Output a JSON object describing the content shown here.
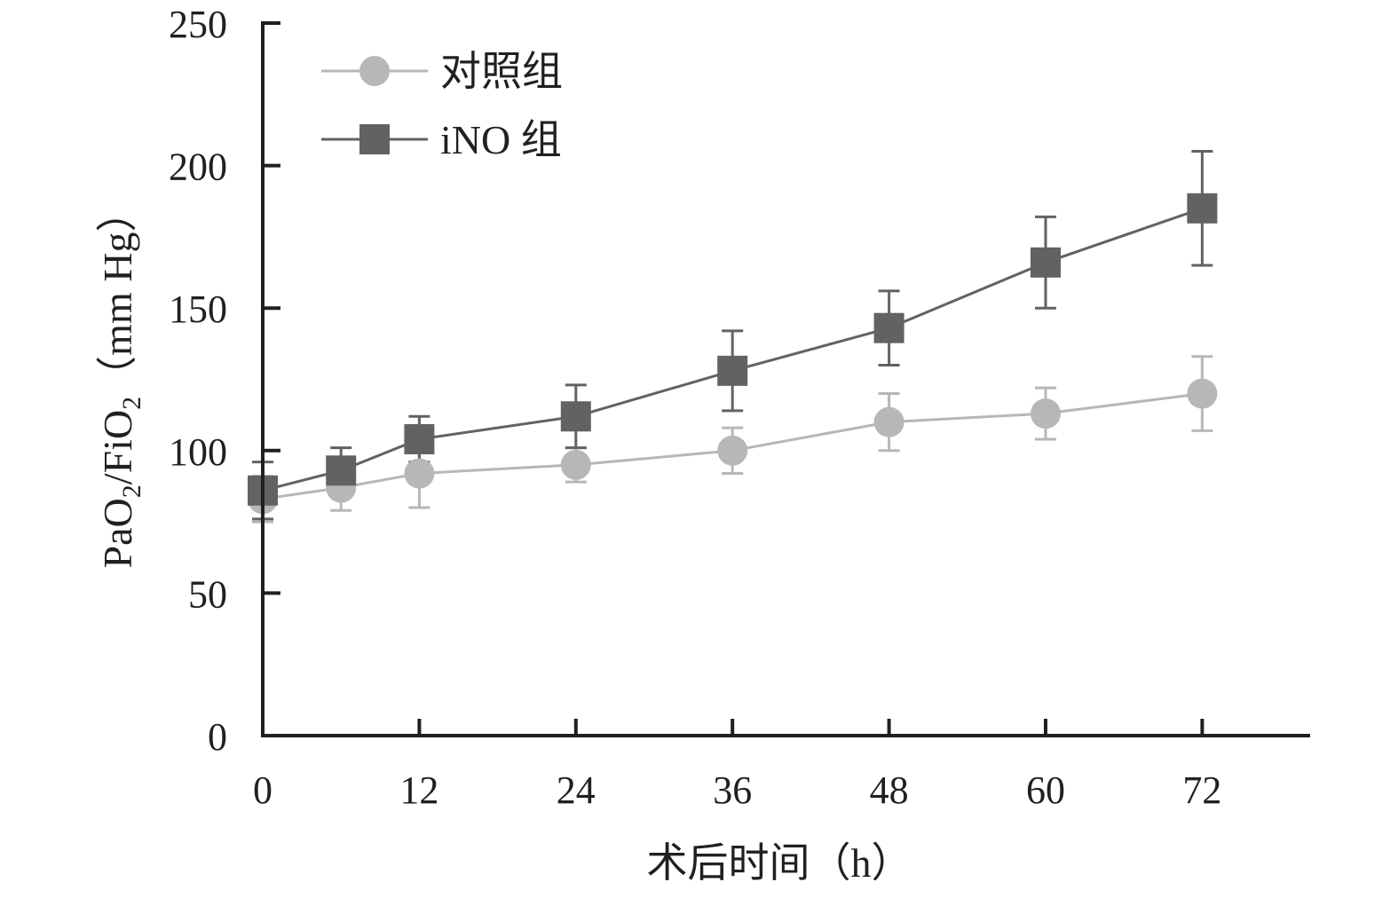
{
  "chart_data": {
    "type": "line",
    "xlabel": "术后时间（h）",
    "ylabel": "PaO₂/FiO₂（mm Hg）",
    "ylabel_parts": [
      "PaO",
      "2",
      "/FiO",
      "2",
      "（mm Hg）"
    ],
    "xlim": [
      0,
      78
    ],
    "ylim": [
      0,
      250
    ],
    "x_ticks": [
      0,
      12,
      24,
      36,
      48,
      60,
      72
    ],
    "x_tick_labels": [
      "0",
      "12",
      "24",
      "36",
      "48",
      "60",
      "72"
    ],
    "y_ticks": [
      0,
      50,
      100,
      150,
      200,
      250
    ],
    "y_tick_labels": [
      "0",
      "50",
      "100",
      "150",
      "200",
      "250"
    ],
    "grid": false,
    "legend_position": "top-left",
    "series": [
      {
        "name": "对照组",
        "marker": "circle",
        "color": "#b7b7b7",
        "x": [
          0,
          6,
          12,
          24,
          36,
          48,
          60,
          72
        ],
        "values": [
          83,
          87,
          92,
          95,
          100,
          110,
          113,
          120
        ],
        "error": [
          8,
          8,
          12,
          6,
          8,
          10,
          9,
          13
        ]
      },
      {
        "name": "iNO 组",
        "marker": "square",
        "color": "#626262",
        "x": [
          0,
          6,
          12,
          24,
          36,
          48,
          60,
          72
        ],
        "values": [
          86,
          93,
          104,
          112,
          128,
          143,
          166,
          185
        ],
        "error": [
          10,
          8,
          8,
          11,
          14,
          13,
          16,
          20
        ]
      }
    ]
  }
}
